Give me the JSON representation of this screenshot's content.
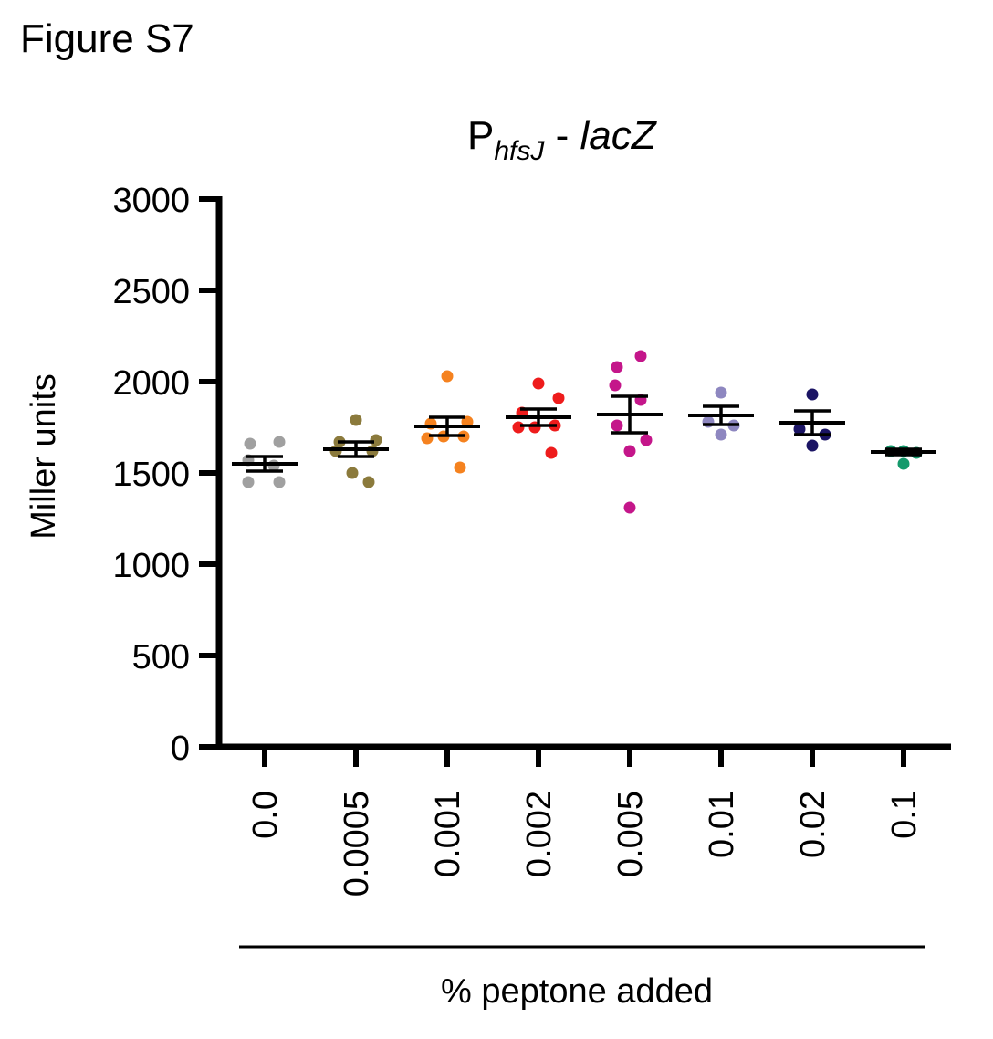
{
  "figure_label": "Figure S7",
  "chart_data": {
    "type": "scatter",
    "title": {
      "main": "P",
      "subscript": "hfsJ",
      "separator": " - ",
      "gene": "lacZ"
    },
    "ylabel": "Miller units",
    "xlabel": "% peptone added",
    "ylim": [
      0,
      3000
    ],
    "yticks": [
      0,
      500,
      1000,
      1500,
      2000,
      2500,
      3000
    ],
    "categories": [
      "0.0",
      "0.0005",
      "0.001",
      "0.002",
      "0.005",
      "0.01",
      "0.02",
      "0.1"
    ],
    "grid": false,
    "groups": [
      {
        "category": "0.0",
        "color": "#a0a0a0",
        "mean": 1550,
        "sem": 40,
        "points": [
          1670,
          1660,
          1570,
          1540,
          1450,
          1450
        ]
      },
      {
        "category": "0.0005",
        "color": "#8b7a3c",
        "mean": 1630,
        "sem": 40,
        "points": [
          1790,
          1680,
          1670,
          1620,
          1620,
          1500,
          1450
        ]
      },
      {
        "category": "0.001",
        "color": "#f5821f",
        "mean": 1755,
        "sem": 50,
        "points": [
          2030,
          1780,
          1770,
          1700,
          1690,
          1700,
          1530
        ]
      },
      {
        "category": "0.002",
        "color": "#ee1c1c",
        "mean": 1805,
        "sem": 45,
        "points": [
          1990,
          1910,
          1830,
          1760,
          1750,
          1750,
          1610
        ]
      },
      {
        "category": "0.005",
        "color": "#c4168a",
        "mean": 1820,
        "sem": 100,
        "points": [
          2140,
          2080,
          1980,
          1900,
          1760,
          1680,
          1620,
          1310
        ]
      },
      {
        "category": "0.01",
        "color": "#8e87c0",
        "mean": 1815,
        "sem": 50,
        "points": [
          1940,
          1780,
          1760,
          1710
        ]
      },
      {
        "category": "0.02",
        "color": "#1b1464",
        "mean": 1775,
        "sem": 65,
        "points": [
          1930,
          1740,
          1710,
          1650
        ]
      },
      {
        "category": "0.1",
        "color": "#159a6c",
        "mean": 1615,
        "sem": 15,
        "points": [
          1620,
          1620,
          1610,
          1550
        ]
      }
    ]
  }
}
